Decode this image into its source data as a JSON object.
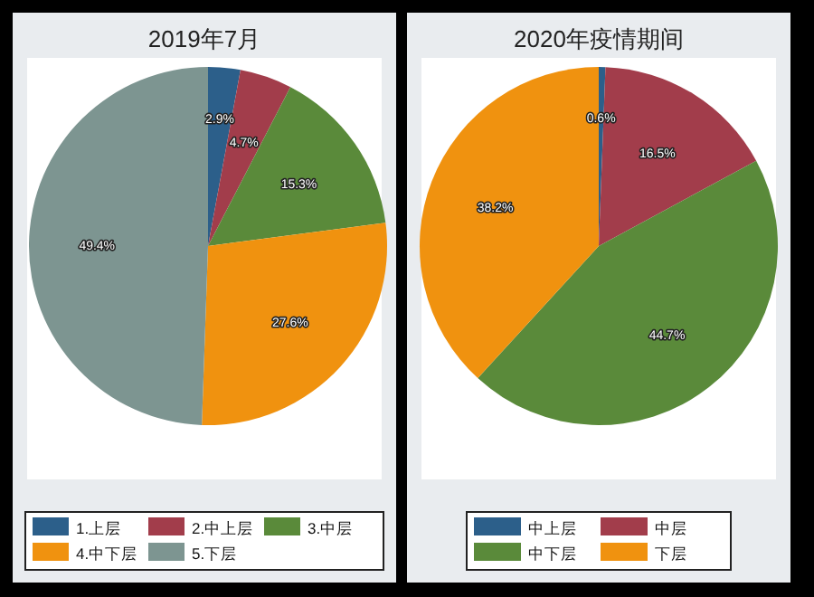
{
  "chart_data": [
    {
      "type": "pie",
      "title": "2019年7月",
      "categories": [
        "1.上层",
        "2.中上层",
        "3.中层",
        "4.中下层",
        "5.下层"
      ],
      "values": [
        2.9,
        4.7,
        15.3,
        27.6,
        49.4
      ],
      "value_labels": [
        "2.9%",
        "4.7%",
        "15.3%",
        "27.6%",
        "49.4%"
      ],
      "colors": [
        "#2c5f8a",
        "#a23d4b",
        "#5a8a3a",
        "#f0920f",
        "#7d9591"
      ],
      "legend": "bottom"
    },
    {
      "type": "pie",
      "title": "2020年疫情期间",
      "categories": [
        "中上层",
        "中层",
        "中下层",
        "下层"
      ],
      "values": [
        0.6,
        16.5,
        44.7,
        38.2
      ],
      "value_labels": [
        "0.6%",
        "16.5%",
        "44.7%",
        "38.2%"
      ],
      "colors": [
        "#2c5f8a",
        "#a23d4b",
        "#5a8a3a",
        "#f0920f"
      ],
      "legend": "bottom"
    }
  ]
}
